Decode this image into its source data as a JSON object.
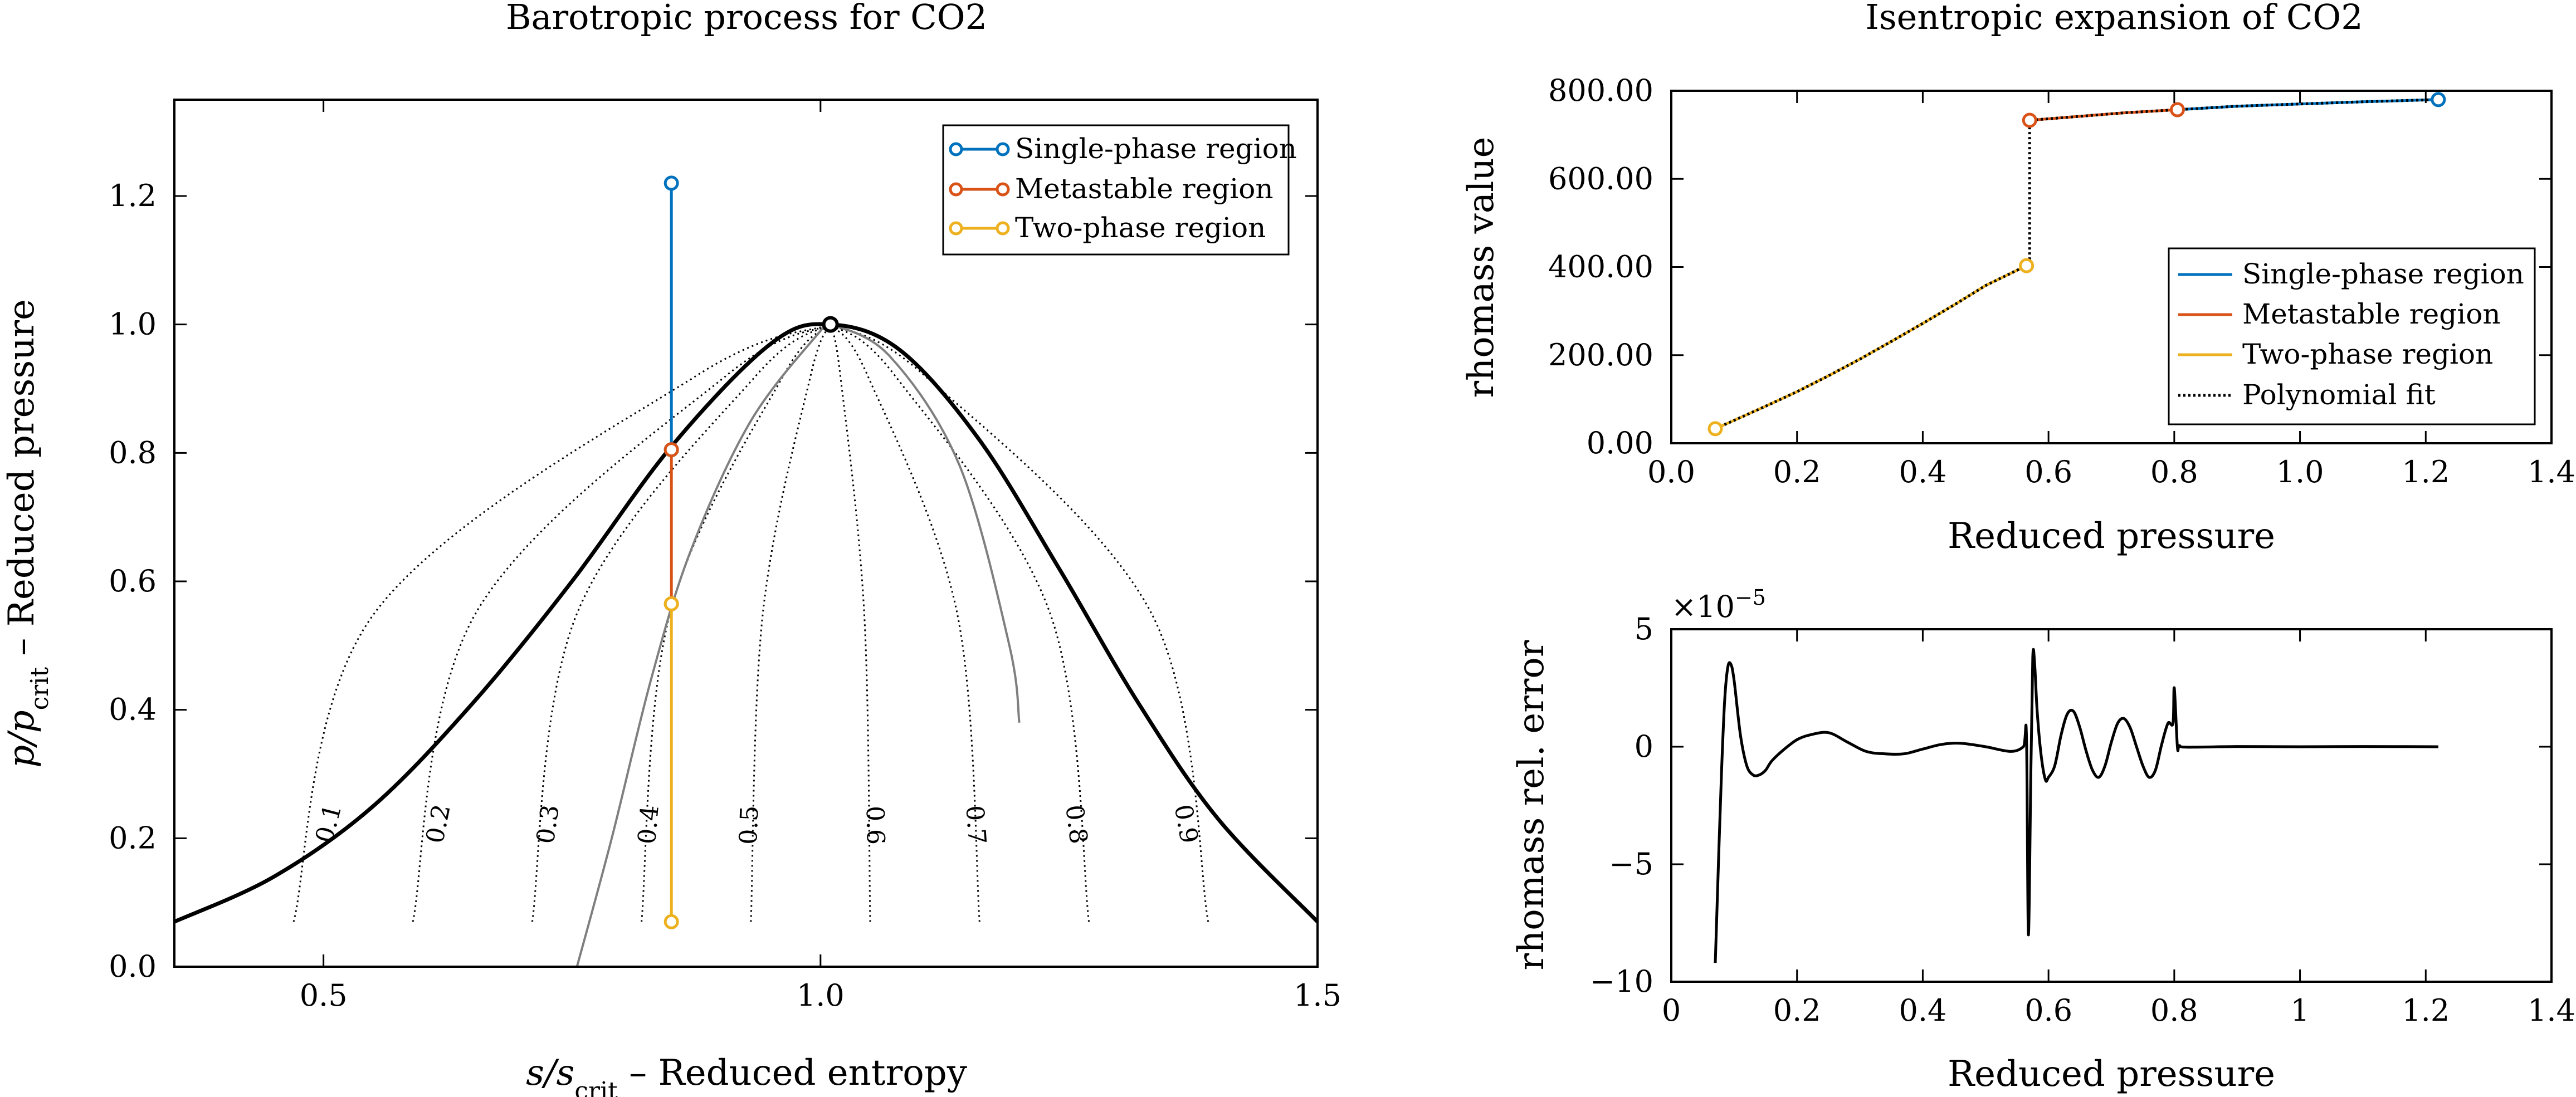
{
  "chart_data": [
    {
      "type": "line",
      "title": "Barotropic process for CO2",
      "xlabel": "s/s_crit – Reduced entropy",
      "xlabel_parts": {
        "prefix": "s/s",
        "sub": "crit",
        "rest": " – Reduced entropy"
      },
      "ylabel": "p/p_crit – Reduced pressure",
      "ylabel_parts": {
        "prefix": "p/p",
        "sub": "crit",
        "rest": " – Reduced pressure"
      },
      "xlim": [
        0.35,
        1.5
      ],
      "ylim": [
        0.0,
        1.35
      ],
      "xticks": [
        0.5,
        1.0,
        1.5
      ],
      "xtick_labels": [
        "0.5",
        "1.0",
        "1.5"
      ],
      "yticks": [
        0.0,
        0.2,
        0.4,
        0.6,
        0.8,
        1.0,
        1.2
      ],
      "ytick_labels": [
        "0.0",
        "0.2",
        "0.4",
        "0.6",
        "0.8",
        "1.0",
        "1.2"
      ],
      "legend_position": "top-right",
      "saturation_dome": {
        "critical_point": [
          1.01,
          1.0
        ],
        "left": [
          [
            0.35,
            0.07
          ],
          [
            0.45,
            0.14
          ],
          [
            0.55,
            0.25
          ],
          [
            0.65,
            0.41
          ],
          [
            0.75,
            0.6
          ],
          [
            0.85,
            0.81
          ],
          [
            0.95,
            0.97
          ],
          [
            1.01,
            1.0
          ]
        ],
        "right": [
          [
            1.01,
            1.0
          ],
          [
            1.08,
            0.96
          ],
          [
            1.16,
            0.82
          ],
          [
            1.24,
            0.62
          ],
          [
            1.32,
            0.41
          ],
          [
            1.4,
            0.23
          ],
          [
            1.5,
            0.07
          ]
        ]
      },
      "quality_lines": [
        {
          "label": "0.1",
          "bottom": [
            0.47,
            0.07
          ]
        },
        {
          "label": "0.2",
          "bottom": [
            0.59,
            0.07
          ]
        },
        {
          "label": "0.3",
          "bottom": [
            0.71,
            0.07
          ]
        },
        {
          "label": "0.4",
          "bottom": [
            0.82,
            0.07
          ]
        },
        {
          "label": "0.5",
          "bottom": [
            0.93,
            0.07
          ]
        },
        {
          "label": "0.6",
          "bottom": [
            1.05,
            0.07
          ]
        },
        {
          "label": "0.7",
          "bottom": [
            1.16,
            0.07
          ]
        },
        {
          "label": "0.8",
          "bottom": [
            1.27,
            0.07
          ]
        },
        {
          "label": "0.9",
          "bottom": [
            1.39,
            0.07
          ]
        }
      ],
      "spinodal": [
        [
          0.755,
          0.0
        ],
        [
          0.79,
          0.2
        ],
        [
          0.83,
          0.45
        ],
        [
          0.87,
          0.65
        ],
        [
          0.93,
          0.85
        ],
        [
          1.0,
          0.99
        ],
        [
          1.01,
          1.0
        ],
        [
          1.07,
          0.95
        ],
        [
          1.14,
          0.78
        ],
        [
          1.19,
          0.5
        ],
        [
          1.2,
          0.38
        ]
      ],
      "series": [
        {
          "name": "Single-phase region",
          "color": "#0072bd",
          "points": [
            [
              0.85,
              1.22
            ],
            [
              0.85,
              0.805
            ]
          ]
        },
        {
          "name": "Metastable region",
          "color": "#d95319",
          "points": [
            [
              0.85,
              0.805
            ],
            [
              0.85,
              0.565
            ]
          ]
        },
        {
          "name": "Two-phase region",
          "color": "#edb120",
          "points": [
            [
              0.85,
              0.565
            ],
            [
              0.85,
              0.07
            ]
          ]
        }
      ]
    },
    {
      "type": "line",
      "title": "Isentropic expansion of CO2",
      "xlabel": "Reduced pressure",
      "ylabel": "rhomass value",
      "xlim": [
        0.0,
        1.4
      ],
      "ylim": [
        0.0,
        800.0
      ],
      "xticks": [
        0.0,
        0.2,
        0.4,
        0.6,
        0.8,
        1.0,
        1.2,
        1.4
      ],
      "xtick_labels": [
        "0.0",
        "0.2",
        "0.4",
        "0.6",
        "0.8",
        "1.0",
        "1.2",
        "1.4"
      ],
      "yticks": [
        0,
        200,
        400,
        600,
        800
      ],
      "ytick_labels": [
        "0.00",
        "200.00",
        "400.00",
        "600.00",
        "800.00"
      ],
      "legend_position": "lower-right",
      "series": [
        {
          "name": "Single-phase region",
          "color": "#0072bd",
          "style": "solid",
          "x": [
            0.805,
            0.9,
            1.0,
            1.1,
            1.22
          ],
          "y": [
            757,
            765,
            770,
            775,
            780
          ]
        },
        {
          "name": "Metastable region",
          "color": "#d95319",
          "style": "solid",
          "x": [
            0.57,
            0.65,
            0.72,
            0.805
          ],
          "y": [
            733,
            742,
            750,
            757
          ]
        },
        {
          "name": "Two-phase region",
          "color": "#edb120",
          "style": "solid",
          "x": [
            0.07,
            0.1,
            0.15,
            0.2,
            0.25,
            0.3,
            0.35,
            0.4,
            0.45,
            0.5,
            0.565
          ],
          "y": [
            33,
            52,
            84,
            117,
            153,
            191,
            231,
            272,
            314,
            358,
            403
          ]
        },
        {
          "name": "Polynomial fit",
          "color": "#000000",
          "style": "dotted",
          "x": [
            0.07,
            0.1,
            0.15,
            0.2,
            0.25,
            0.3,
            0.35,
            0.4,
            0.45,
            0.5,
            0.565,
            0.57,
            0.57,
            0.65,
            0.72,
            0.805,
            0.9,
            1.0,
            1.1,
            1.22
          ],
          "y": [
            33,
            52,
            84,
            117,
            153,
            191,
            231,
            272,
            314,
            358,
            403,
            403,
            733,
            742,
            750,
            757,
            765,
            770,
            775,
            780
          ]
        }
      ],
      "markers": [
        {
          "x": 0.07,
          "y": 33,
          "color": "#edb120"
        },
        {
          "x": 0.565,
          "y": 403,
          "color": "#edb120"
        },
        {
          "x": 0.57,
          "y": 733,
          "color": "#d95319"
        },
        {
          "x": 0.805,
          "y": 757,
          "color": "#d95319"
        },
        {
          "x": 1.22,
          "y": 780,
          "color": "#0072bd"
        }
      ]
    },
    {
      "type": "line",
      "xlabel": "Reduced pressure",
      "ylabel": "rhomass rel. error",
      "scale_factor": "×10^-5",
      "scale_parts": {
        "prefix": "×10",
        "exp": "−5"
      },
      "xlim": [
        0.0,
        1.4
      ],
      "ylim": [
        -10,
        5
      ],
      "xticks": [
        0,
        0.2,
        0.4,
        0.6,
        0.8,
        1,
        1.2,
        1.4
      ],
      "xtick_labels": [
        "0",
        "0.2",
        "0.4",
        "0.6",
        "0.8",
        "1",
        "1.2",
        "1.4"
      ],
      "yticks": [
        -10,
        -5,
        0,
        5
      ],
      "ytick_labels": [
        "−10",
        "−5",
        "0",
        "5"
      ],
      "series": [
        {
          "color": "#000000",
          "x": [
            0.07,
            0.075,
            0.08,
            0.085,
            0.09,
            0.095,
            0.1,
            0.11,
            0.12,
            0.13,
            0.14,
            0.15,
            0.16,
            0.18,
            0.2,
            0.22,
            0.25,
            0.28,
            0.31,
            0.34,
            0.37,
            0.4,
            0.43,
            0.46,
            0.5,
            0.54,
            0.56,
            0.565,
            0.568,
            0.572,
            0.575,
            0.578,
            0.582,
            0.588,
            0.595,
            0.6,
            0.61,
            0.62,
            0.63,
            0.64,
            0.65,
            0.66,
            0.67,
            0.68,
            0.69,
            0.7,
            0.71,
            0.72,
            0.73,
            0.74,
            0.75,
            0.76,
            0.77,
            0.78,
            0.79,
            0.798,
            0.8,
            0.805,
            0.808,
            0.82,
            0.9,
            1.0,
            1.1,
            1.22
          ],
          "y": [
            -9.2,
            -5,
            -1,
            2,
            3.4,
            3.5,
            2.8,
            0.5,
            -0.8,
            -1.2,
            -1.2,
            -1.0,
            -0.6,
            -0.1,
            0.3,
            0.5,
            0.6,
            0.2,
            -0.2,
            -0.3,
            -0.3,
            -0.1,
            0.1,
            0.15,
            0.0,
            -0.2,
            0.0,
            0.4,
            -8.0,
            -1.0,
            3.8,
            3.5,
            1.5,
            -0.3,
            -1.4,
            -1.3,
            -0.8,
            0.5,
            1.4,
            1.5,
            0.8,
            -0.2,
            -1.0,
            -1.3,
            -0.8,
            0.2,
            1.0,
            1.2,
            0.8,
            0.0,
            -0.8,
            -1.3,
            -1.0,
            0.1,
            1.0,
            1.0,
            2.5,
            0.0,
            0.05,
            -0.02,
            0.01,
            0.0,
            0.01,
            0.0
          ]
        }
      ]
    }
  ]
}
